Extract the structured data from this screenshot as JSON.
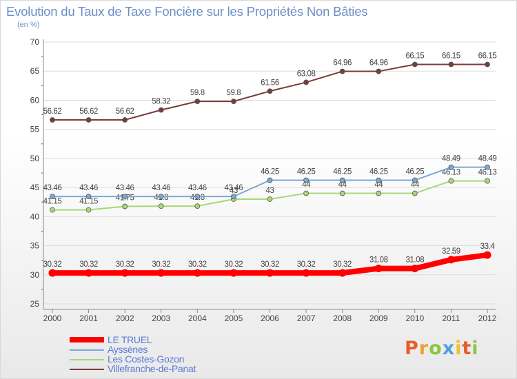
{
  "title": "Evolution du Taux de Taxe Foncière sur les Propriétés Non Bâties",
  "ylabel": "(en %)",
  "logo": {
    "text": "Proxiti",
    "letters": [
      "P",
      "r",
      "o",
      "x",
      "i",
      "t",
      "i"
    ]
  },
  "chart_data": {
    "type": "line",
    "title": "Evolution du Taux de Taxe Foncière sur les Propriétés Non Bâties",
    "ylabel": "(en %)",
    "xlabel": "",
    "x": [
      "2000",
      "2001",
      "2002",
      "2003",
      "2004",
      "2005",
      "2006",
      "2007",
      "2008",
      "2009",
      "2010",
      "2011",
      "2012"
    ],
    "ylim": [
      25,
      70
    ],
    "yticks": [
      "25",
      "30",
      "35",
      "40",
      "45",
      "50",
      "55",
      "60",
      "65",
      "70"
    ],
    "grid": true,
    "legend_position": "bottom-left",
    "series": [
      {
        "name": "LE TRUEL",
        "color": "#ff0000",
        "values": [
          30.32,
          30.32,
          30.32,
          30.32,
          30.32,
          30.32,
          30.32,
          30.32,
          30.32,
          31.08,
          31.08,
          32.59,
          33.4
        ],
        "labels": [
          "30.32",
          "30.32",
          "30.32",
          "30.32",
          "30.32",
          "30.32",
          "30.32",
          "30.32",
          "30.32",
          "31.08",
          "31.08",
          "32.59",
          "33.4"
        ]
      },
      {
        "name": "Ayssènes",
        "color": "#7aa9d6",
        "values": [
          43.46,
          43.46,
          43.46,
          43.46,
          43.46,
          43.46,
          46.25,
          46.25,
          46.25,
          46.25,
          46.25,
          48.49,
          48.49
        ],
        "labels": [
          "43.46",
          "43.46",
          "43.46",
          "43.46",
          "43.46",
          "43.46",
          "46.25",
          "46.25",
          "46.25",
          "46.25",
          "46.25",
          "48.49",
          "48.49"
        ]
      },
      {
        "name": "Les Costes-Gozon",
        "color": "#a8d878",
        "values": [
          41.15,
          41.15,
          41.75,
          41.8,
          41.8,
          43,
          43,
          44,
          44,
          44,
          44,
          46.13,
          46.13
        ],
        "labels": [
          "41.15",
          "41.15",
          "41.75",
          "41.8",
          "41.8",
          "43",
          "43",
          "44",
          "44",
          "44",
          "44",
          "46.13",
          "46.13"
        ]
      },
      {
        "name": "Villefranche-de-Panat",
        "color": "#7a3b3b",
        "values": [
          56.62,
          56.62,
          56.62,
          58.32,
          59.8,
          59.8,
          61.56,
          63.08,
          64.96,
          64.96,
          66.15,
          66.15,
          66.15
        ],
        "labels": [
          "56.62",
          "56.62",
          "56.62",
          "58.32",
          "59.8",
          "59.8",
          "61.56",
          "63.08",
          "64.96",
          "64.96",
          "66.15",
          "66.15",
          "66.15"
        ]
      }
    ]
  }
}
